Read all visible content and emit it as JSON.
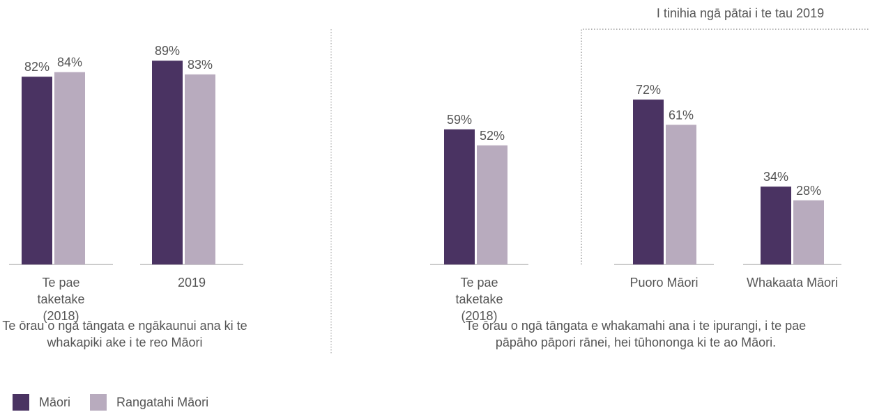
{
  "colors": {
    "maori": "#4a3362",
    "rangatahi": "#b8abbe",
    "axis": "#999999",
    "divider": "#999999"
  },
  "legend": [
    {
      "label": "Māori",
      "color_key": "maori"
    },
    {
      "label": "Rangatahi Māori",
      "color_key": "rangatahi"
    }
  ],
  "chart_data": [
    {
      "type": "bar",
      "title": "Te ōrau o ngā tāngata e ngākaunui ana ki te whakapiki ake i te reo Māori",
      "categories": [
        "Te pae taketake (2018)",
        "2019"
      ],
      "series": [
        {
          "name": "Māori",
          "values": [
            82,
            89
          ],
          "labels": [
            "82%",
            "89%"
          ]
        },
        {
          "name": "Rangatahi Māori",
          "values": [
            84,
            83
          ],
          "labels": [
            "84%",
            "83%"
          ]
        }
      ],
      "ylim": [
        0,
        100
      ],
      "grid": false,
      "legend_position": "bottom-left"
    },
    {
      "type": "bar",
      "title": "Te ōrau o ngā tāngata e whakamahi ana i te ipurangi, i te pae pāpāho pāpori rānei, hei tūhononga ki te ao Māori.",
      "categories": [
        "Te pae taketake (2018)",
        "Puoro Māori",
        "Whakaata Māori"
      ],
      "series": [
        {
          "name": "Māori",
          "values": [
            59,
            72,
            34
          ],
          "labels": [
            "59%",
            "72%",
            "34%"
          ]
        },
        {
          "name": "Rangatahi Māori",
          "values": [
            52,
            61,
            28
          ],
          "labels": [
            "52%",
            "61%",
            "28%"
          ]
        }
      ],
      "ylim": [
        0,
        100
      ],
      "grid": false,
      "annotation": "I tinihia ngā pātai i te tau 2019"
    }
  ]
}
